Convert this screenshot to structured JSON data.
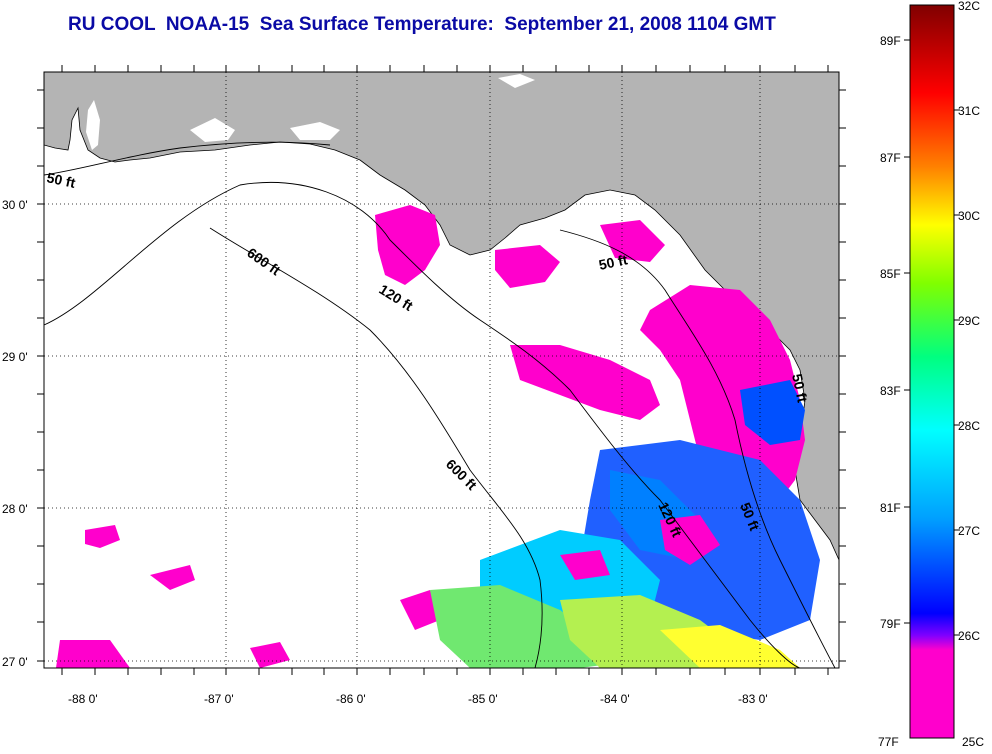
{
  "title": "RU COOL  NOAA-15  Sea Surface Temperature:  September 21, 2008 1104 GMT",
  "map": {
    "lon_labels": [
      "-88 0'",
      "-87 0'",
      "-86 0'",
      "-85 0'",
      "-84 0'",
      "-83 0'"
    ],
    "lat_labels": [
      "30 0'",
      "29 0'",
      "28 0'",
      "27 0'"
    ],
    "isobath_labels": [
      {
        "text": "50 ft"
      },
      {
        "text": "600 ft"
      },
      {
        "text": "120 ft"
      },
      {
        "text": "50 ft"
      },
      {
        "text": "600 ft"
      },
      {
        "text": "120 ft"
      },
      {
        "text": "50 ft"
      },
      {
        "text": "50 ft"
      }
    ],
    "land_color": "#b4b4b4",
    "cloud_color": "#ffffff"
  },
  "colorbar": {
    "celsius_labels": [
      "32C",
      "31C",
      "30C",
      "29C",
      "28C",
      "27C",
      "26C",
      "25C"
    ],
    "fahrenheit_labels": [
      "89F",
      "87F",
      "85F",
      "83F",
      "81F",
      "79F",
      "77F"
    ],
    "colors": [
      "#ff00cc",
      "#7f00ff",
      "#0000ff",
      "#00a0ff",
      "#00ffff",
      "#00ff80",
      "#80ff00",
      "#ffff00",
      "#ff8000",
      "#ff0000",
      "#800000"
    ]
  }
}
